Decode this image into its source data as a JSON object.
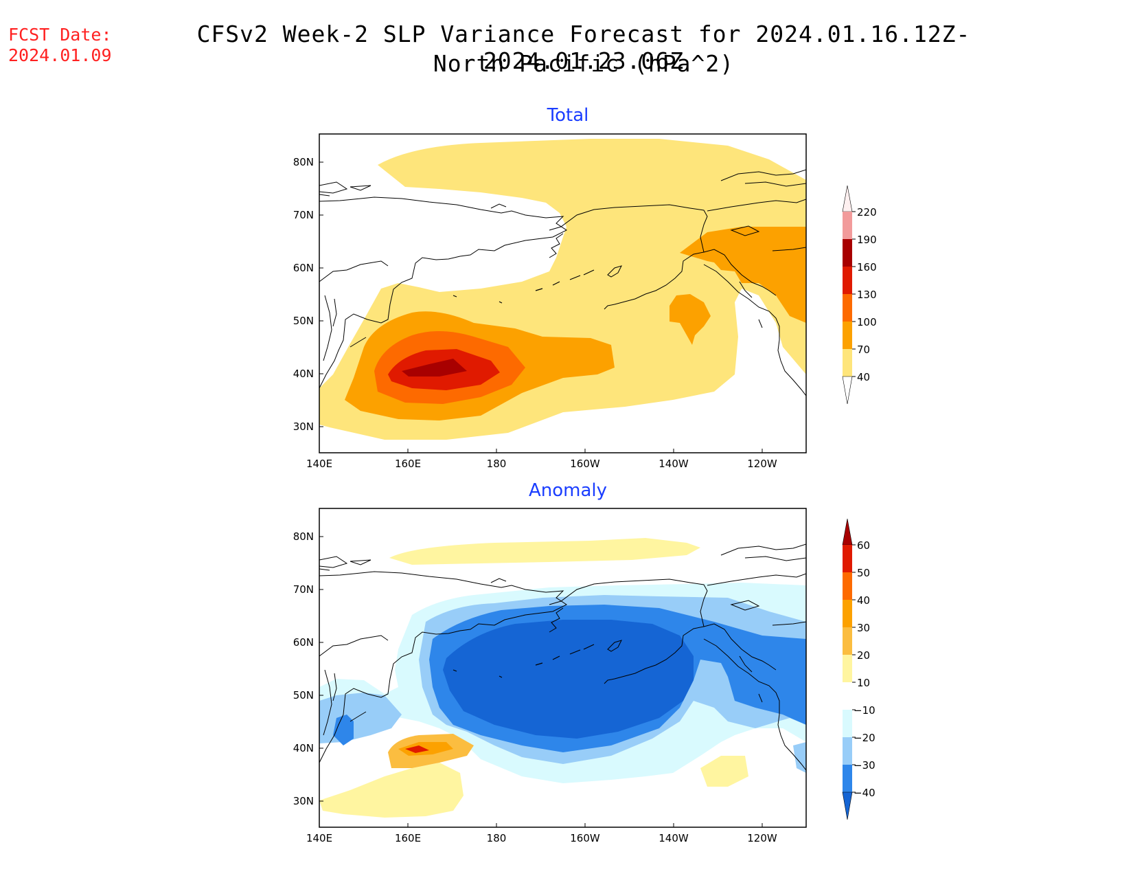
{
  "header": {
    "fcst_label": "FCST Date:",
    "fcst_date": "2024.01.09",
    "title_line1": "CFSv2 Week-2 SLP Variance Forecast for 2024.01.16.12Z-2024.01.23.06Z",
    "title_line2": "North Pacific (hPa^2)"
  },
  "panels": [
    {
      "title": "Total",
      "lat_ticks": [
        "80N",
        "70N",
        "60N",
        "50N",
        "40N",
        "30N"
      ],
      "lon_ticks": [
        "140E",
        "160E",
        "180",
        "160W",
        "140W",
        "120W"
      ],
      "colorbar": {
        "levels": [
          "220",
          "190",
          "160",
          "130",
          "100",
          "70",
          "40"
        ],
        "colors": [
          "#fbd5d5",
          "#f29b9b",
          "#a80000",
          "#e01a00",
          "#fd6a00",
          "#fca100",
          "#fee57b"
        ]
      }
    },
    {
      "title": "Anomaly",
      "lat_ticks": [
        "80N",
        "70N",
        "60N",
        "50N",
        "40N",
        "30N"
      ],
      "lon_ticks": [
        "140E",
        "160E",
        "180",
        "160W",
        "140W",
        "120W"
      ],
      "colorbar": {
        "levels": [
          "60",
          "50",
          "40",
          "30",
          "20",
          "10",
          "−10",
          "−20",
          "−30",
          "−40"
        ],
        "colors": [
          "#a80000",
          "#e01a00",
          "#fd6a00",
          "#fca100",
          "#fbbd40",
          "#fff5a0",
          "#ffffff",
          "#d9fafe",
          "#98cdf8",
          "#2e86ea",
          "#1565d4"
        ]
      }
    }
  ]
}
